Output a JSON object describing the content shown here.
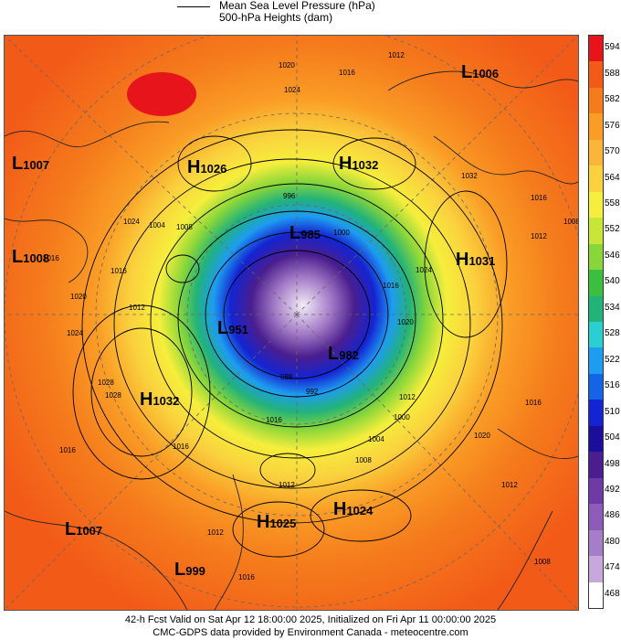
{
  "legend": {
    "mslp_label": "Mean Sea Level Pressure (hPa)",
    "heights_label": "500-hPa Heights (dam)"
  },
  "colorbar": {
    "levels": [
      {
        "label": "594",
        "color": "#e8141c"
      },
      {
        "label": "588",
        "color": "#f25a18"
      },
      {
        "label": "582",
        "color": "#f57c1c"
      },
      {
        "label": "576",
        "color": "#fa9d26"
      },
      {
        "label": "570",
        "color": "#fbb53a"
      },
      {
        "label": "564",
        "color": "#fad23e"
      },
      {
        "label": "558",
        "color": "#f6ee3c"
      },
      {
        "label": "552",
        "color": "#c8e63a"
      },
      {
        "label": "546",
        "color": "#88d63a"
      },
      {
        "label": "540",
        "color": "#3cbf40"
      },
      {
        "label": "534",
        "color": "#22b27a"
      },
      {
        "label": "528",
        "color": "#2ad0d0"
      },
      {
        "label": "522",
        "color": "#1e9cf0"
      },
      {
        "label": "516",
        "color": "#1464e6"
      },
      {
        "label": "510",
        "color": "#1424d2"
      },
      {
        "label": "504",
        "color": "#1a0e9a"
      },
      {
        "label": "498",
        "color": "#4a1e8e"
      },
      {
        "label": "492",
        "color": "#6e3aa6"
      },
      {
        "label": "486",
        "color": "#8c5cb8"
      },
      {
        "label": "480",
        "color": "#a67ec8"
      },
      {
        "label": "474",
        "color": "#c6a8dc"
      },
      {
        "label": "468",
        "color": "#ffffff"
      }
    ]
  },
  "systems": [
    {
      "type": "L",
      "value": "1006",
      "color": "#000"
    },
    {
      "type": "L",
      "value": "1007",
      "color": "#000"
    },
    {
      "type": "H",
      "value": "1026",
      "color": "#000"
    },
    {
      "type": "H",
      "value": "1032",
      "color": "#000"
    },
    {
      "type": "L",
      "value": "1008",
      "color": "#000"
    },
    {
      "type": "L",
      "value": "985",
      "color": "#000"
    },
    {
      "type": "H",
      "value": "1031",
      "color": "#000"
    },
    {
      "type": "L",
      "value": "951",
      "color": "#000"
    },
    {
      "type": "L",
      "value": "982",
      "color": "#000"
    },
    {
      "type": "H",
      "value": "1032",
      "color": "#000"
    },
    {
      "type": "L",
      "value": "1007",
      "color": "#000"
    },
    {
      "type": "H",
      "value": "1025",
      "color": "#000"
    },
    {
      "type": "H",
      "value": "1024",
      "color": "#000"
    },
    {
      "type": "L",
      "value": "999",
      "color": "#000"
    }
  ],
  "contour_labels": [
    "1020",
    "1016",
    "1012",
    "1024",
    "1008",
    "1004",
    "996",
    "1000",
    "992",
    "988",
    "1020",
    "1016",
    "1012",
    "1016",
    "1016",
    "1024",
    "1028",
    "1024",
    "1016",
    "1012",
    "1016",
    "1012",
    "1008",
    "1016",
    "1012",
    "1008",
    "1000",
    "1004",
    "1016",
    "1020",
    "1016",
    "1012",
    "1008",
    "1028",
    "1032",
    "1012",
    "1016",
    "1020",
    "1024"
  ],
  "footer": {
    "line1": "42-h Fcst Valid on Sat Apr 12 18:00:00 2025, Initialized on Fri Apr 11 00:00:00 2025",
    "line2": "CMC-GDPS data provided by Environment Canada - meteocentre.com"
  }
}
